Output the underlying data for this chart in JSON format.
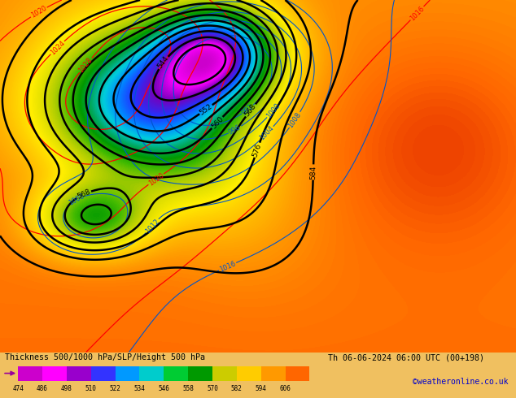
{
  "title_left": "Thickness 500/1000 hPa/SLP/Height 500 hPa",
  "title_right": "Th 06-06-2024 06:00 UTC (00+198)",
  "credit": "©weatheronline.co.uk",
  "colorbar_values": [
    474,
    486,
    498,
    510,
    522,
    534,
    546,
    558,
    570,
    582,
    594,
    606
  ],
  "colorbar_colors": [
    "#cc00cc",
    "#ff00ff",
    "#9900cc",
    "#3333ff",
    "#0099ff",
    "#00cccc",
    "#00cc33",
    "#009900",
    "#cccc00",
    "#ffcc00",
    "#ff9900",
    "#ff6600"
  ],
  "bottom_bar_bg": "#f0c060",
  "credit_color": "#0000cc",
  "fig_width": 6.34,
  "fig_height": 4.9,
  "dpi": 100,
  "thickness_cmap": [
    "#cc00cc",
    "#ff00ff",
    "#9900cc",
    "#3333ff",
    "#0099ff",
    "#00cccc",
    "#00cc66",
    "#009900",
    "#66bb00",
    "#aacc00",
    "#dddd00",
    "#ffcc00",
    "#ff9900",
    "#ff6600"
  ]
}
